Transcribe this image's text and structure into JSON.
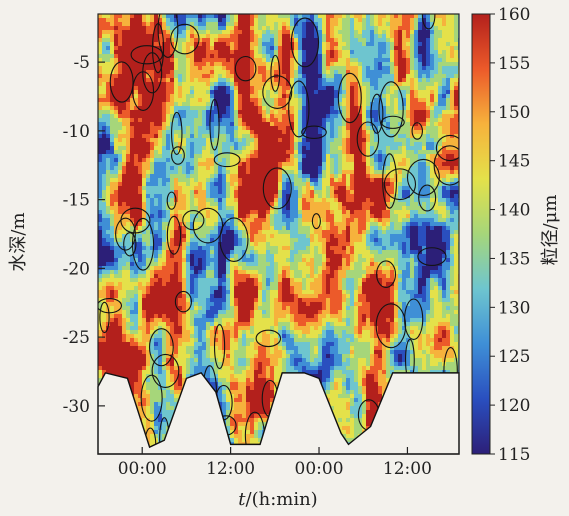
{
  "chart_data": {
    "type": "heatmap",
    "subtype": "filled-contour",
    "x": {
      "label": "t/(h:min)",
      "label_parts": {
        "variable": "t",
        "unit": "/(h:min)"
      },
      "tick_labels": [
        "00:00",
        "12:00",
        "00:00",
        "12:00"
      ],
      "tick_values_hours": [
        6,
        18,
        30,
        42
      ],
      "range_hours": [
        0,
        49
      ]
    },
    "y": {
      "label": "水深/m",
      "tick_labels": [
        "-5",
        "-10",
        "-15",
        "-20",
        "-25",
        "-30"
      ],
      "tick_values": [
        -5,
        -10,
        -15,
        -20,
        -25,
        -30
      ],
      "range": [
        -33.5,
        -1.5
      ]
    },
    "colorbar": {
      "label": "粒径/μm",
      "tick_labels": [
        "160",
        "155",
        "150",
        "145",
        "140",
        "135",
        "130",
        "125",
        "120",
        "115"
      ],
      "range": [
        115,
        160
      ],
      "colormap": [
        "#2c1f78",
        "#2a4fbf",
        "#3f8fd6",
        "#6ec5cf",
        "#a6d67a",
        "#e4e14a",
        "#f6b23c",
        "#ec5a2a",
        "#b3201c"
      ]
    },
    "bottom_boundary": {
      "description_free": true,
      "hours": [
        0,
        1,
        4,
        7,
        9,
        12,
        14,
        16,
        18,
        22,
        25,
        28,
        30,
        33,
        34,
        37,
        40,
        42,
        45,
        49
      ],
      "depth": [
        -28.6,
        -27.6,
        -28.0,
        -33.0,
        -32.5,
        -28.0,
        -27.6,
        -29.0,
        -32.8,
        -32.8,
        -27.6,
        -27.6,
        -28.0,
        -32.0,
        -32.8,
        -31.5,
        -27.6,
        -27.6,
        -27.6,
        -27.6
      ]
    },
    "grid": false,
    "legend": "none"
  }
}
